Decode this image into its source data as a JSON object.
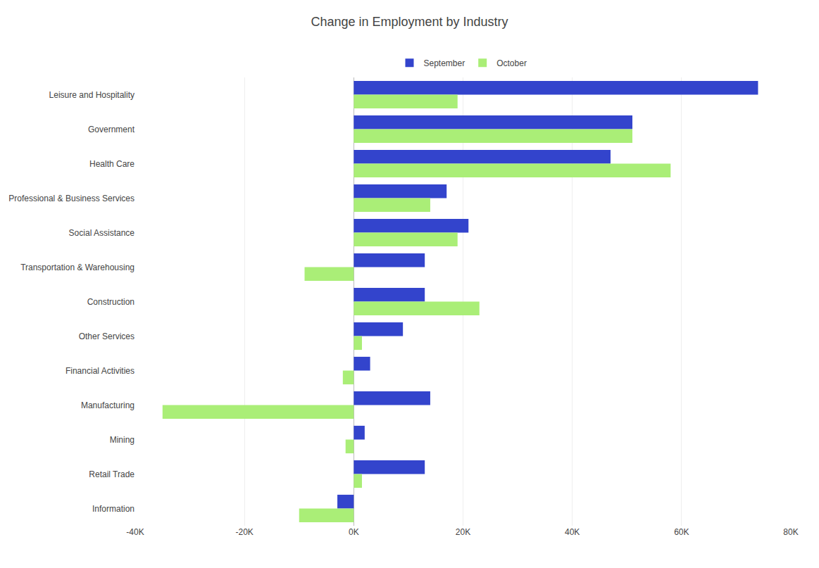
{
  "chart_data": {
    "type": "bar",
    "orientation": "horizontal",
    "title": "Change in Employment by Industry",
    "categories": [
      "Leisure and Hospitality",
      "Government",
      "Health Care",
      "Professional & Business Services",
      "Social Assistance",
      "Transportation & Warehousing",
      "Construction",
      "Other Services",
      "Financial Activities",
      "Manufacturing",
      "Mining",
      "Retail Trade",
      "Information"
    ],
    "series": [
      {
        "name": "September",
        "color": "#3344cc",
        "values": [
          74000,
          51000,
          47000,
          17000,
          21000,
          13000,
          13000,
          9000,
          3000,
          14000,
          2000,
          13000,
          -3000
        ]
      },
      {
        "name": "October",
        "color": "#aaee77",
        "values": [
          19000,
          51000,
          58000,
          14000,
          19000,
          -9000,
          23000,
          1500,
          -2000,
          -35000,
          -1500,
          1500,
          -10000
        ]
      }
    ],
    "xlim": [
      -40000,
      80000
    ],
    "xticks": [
      {
        "value": -40000,
        "label": "-40K"
      },
      {
        "value": -20000,
        "label": "-20K"
      },
      {
        "value": 0,
        "label": "0K"
      },
      {
        "value": 20000,
        "label": "20K"
      },
      {
        "value": 40000,
        "label": "40K"
      },
      {
        "value": 60000,
        "label": "60K"
      },
      {
        "value": 80000,
        "label": "80K"
      }
    ],
    "grid": true,
    "legend": "top"
  }
}
